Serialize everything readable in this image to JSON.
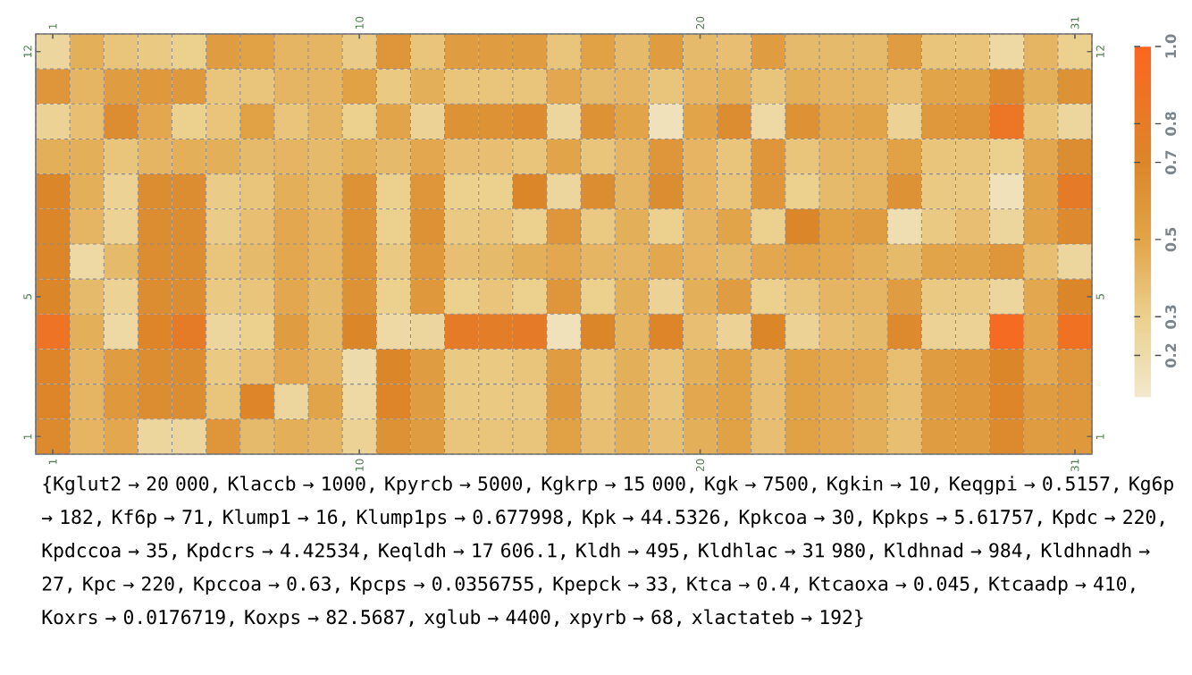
{
  "chart_data": {
    "type": "heatmap",
    "categories": [
      "1",
      null,
      null,
      null,
      null,
      null,
      null,
      null,
      null,
      "10",
      null,
      null,
      null,
      null,
      null,
      null,
      null,
      null,
      null,
      "20",
      null,
      null,
      null,
      null,
      null,
      null,
      null,
      null,
      null,
      null,
      "31"
    ],
    "y_categories": [
      "12",
      null,
      null,
      null,
      null,
      null,
      null,
      "5",
      null,
      null,
      null,
      "1"
    ],
    "y2_categories": [
      "12",
      null,
      null,
      null,
      null,
      null,
      null,
      "5",
      null,
      null,
      null,
      "1"
    ],
    "cells": [
      [
        0.25,
        0.45,
        0.35,
        0.33,
        0.3,
        0.55,
        0.52,
        0.42,
        0.42,
        0.32,
        0.6,
        0.35,
        0.55,
        0.55,
        0.55,
        0.35,
        0.52,
        0.4,
        0.55,
        0.4,
        0.38,
        0.55,
        0.4,
        0.4,
        0.4,
        0.55,
        0.35,
        0.35,
        0.22,
        0.42,
        0.3
      ],
      [
        0.6,
        0.42,
        0.55,
        0.58,
        0.58,
        0.35,
        0.35,
        0.42,
        0.42,
        0.52,
        0.33,
        0.45,
        0.35,
        0.35,
        0.35,
        0.48,
        0.4,
        0.42,
        0.35,
        0.42,
        0.45,
        0.35,
        0.45,
        0.42,
        0.42,
        0.38,
        0.5,
        0.5,
        0.68,
        0.45,
        0.62
      ],
      [
        0.28,
        0.38,
        0.65,
        0.48,
        0.3,
        0.35,
        0.52,
        0.35,
        0.42,
        0.3,
        0.5,
        0.28,
        0.62,
        0.62,
        0.66,
        0.25,
        0.62,
        0.5,
        0.15,
        0.5,
        0.65,
        0.22,
        0.62,
        0.48,
        0.5,
        0.28,
        0.58,
        0.6,
        0.85,
        0.35,
        0.25
      ],
      [
        0.45,
        0.45,
        0.35,
        0.42,
        0.45,
        0.45,
        0.4,
        0.42,
        0.4,
        0.45,
        0.4,
        0.48,
        0.38,
        0.38,
        0.35,
        0.5,
        0.35,
        0.42,
        0.6,
        0.42,
        0.35,
        0.6,
        0.35,
        0.42,
        0.42,
        0.52,
        0.35,
        0.35,
        0.3,
        0.48,
        0.65
      ],
      [
        0.7,
        0.45,
        0.28,
        0.65,
        0.65,
        0.32,
        0.35,
        0.45,
        0.4,
        0.62,
        0.3,
        0.6,
        0.3,
        0.3,
        0.7,
        0.25,
        0.65,
        0.42,
        0.65,
        0.42,
        0.35,
        0.6,
        0.3,
        0.4,
        0.42,
        0.62,
        0.33,
        0.33,
        0.15,
        0.5,
        0.8
      ],
      [
        0.7,
        0.42,
        0.28,
        0.65,
        0.65,
        0.32,
        0.38,
        0.48,
        0.42,
        0.62,
        0.3,
        0.62,
        0.33,
        0.35,
        0.3,
        0.6,
        0.33,
        0.45,
        0.3,
        0.42,
        0.5,
        0.3,
        0.7,
        0.52,
        0.55,
        0.18,
        0.33,
        0.38,
        0.25,
        0.5,
        0.68
      ],
      [
        0.7,
        0.22,
        0.4,
        0.65,
        0.65,
        0.35,
        0.4,
        0.48,
        0.42,
        0.62,
        0.33,
        0.58,
        0.38,
        0.4,
        0.45,
        0.48,
        0.42,
        0.42,
        0.48,
        0.42,
        0.4,
        0.48,
        0.5,
        0.48,
        0.45,
        0.4,
        0.5,
        0.5,
        0.6,
        0.38,
        0.25
      ],
      [
        0.7,
        0.4,
        0.28,
        0.65,
        0.65,
        0.33,
        0.35,
        0.48,
        0.4,
        0.62,
        0.3,
        0.58,
        0.3,
        0.35,
        0.3,
        0.6,
        0.3,
        0.45,
        0.28,
        0.45,
        0.55,
        0.3,
        0.35,
        0.42,
        0.42,
        0.55,
        0.33,
        0.33,
        0.25,
        0.48,
        0.7
      ],
      [
        0.88,
        0.45,
        0.22,
        0.72,
        0.8,
        0.25,
        0.3,
        0.55,
        0.4,
        0.7,
        0.22,
        0.25,
        0.8,
        0.78,
        0.8,
        0.15,
        0.7,
        0.42,
        0.72,
        0.38,
        0.28,
        0.7,
        0.28,
        0.38,
        0.4,
        0.68,
        0.28,
        0.28,
        0.95,
        0.48,
        0.9
      ],
      [
        0.72,
        0.42,
        0.55,
        0.65,
        0.65,
        0.33,
        0.38,
        0.48,
        0.42,
        0.2,
        0.7,
        0.55,
        0.33,
        0.33,
        0.35,
        0.55,
        0.35,
        0.45,
        0.35,
        0.45,
        0.52,
        0.38,
        0.52,
        0.48,
        0.48,
        0.38,
        0.55,
        0.58,
        0.7,
        0.48,
        0.6
      ],
      [
        0.72,
        0.42,
        0.58,
        0.65,
        0.65,
        0.35,
        0.72,
        0.25,
        0.5,
        0.22,
        0.72,
        0.55,
        0.33,
        0.33,
        0.33,
        0.58,
        0.35,
        0.45,
        0.35,
        0.48,
        0.52,
        0.38,
        0.52,
        0.48,
        0.45,
        0.38,
        0.55,
        0.58,
        0.72,
        0.55,
        0.6
      ],
      [
        0.68,
        0.42,
        0.48,
        0.25,
        0.25,
        0.6,
        0.4,
        0.45,
        0.42,
        0.28,
        0.62,
        0.55,
        0.35,
        0.35,
        0.35,
        0.52,
        0.38,
        0.45,
        0.38,
        0.45,
        0.52,
        0.38,
        0.52,
        0.48,
        0.45,
        0.38,
        0.55,
        0.55,
        0.68,
        0.55,
        0.58
      ]
    ],
    "clim": [
      0.09,
      1.0
    ],
    "cticks": [
      0.2,
      0.3,
      0.5,
      0.7,
      0.8,
      {
        "value": 1.0,
        "label": "1.0"
      }
    ],
    "annotations": [
      "{Kglut2 → 20 000, Klaccb → 1000, Kpyrcb → 5000, Kgkrp → 15 000, Kgk → 7500, Kgkin → 10, Keqgpi → 0.5157, Kg6p → 182, Kf6p → 71, Klump1 → 16, Klump1ps → 0.677998, Kpk → 44.5326, Kpkcoa → 30, Kpkps → 5.61757, Kpdc → 220, Kpdccoa → 35, Kpdcrs → 4.42534, Keqldh → 17 606.1, Kldh → 495, Kldhlac → 31 980, Kldhnad → 984, Kldhnadh → 27, Kpc → 220, Kpccoa → 0.63, Kpcps → 0.0356755, Kpepck → 33, Ktca → 0.4, Ktcaoxa → 0.045, Ktcaadp → 410, Koxrs → 0.0176719, Koxps → 82.5687, xglub → 4400, xpyrb → 68, xlactateb → 192}"
    ]
  }
}
